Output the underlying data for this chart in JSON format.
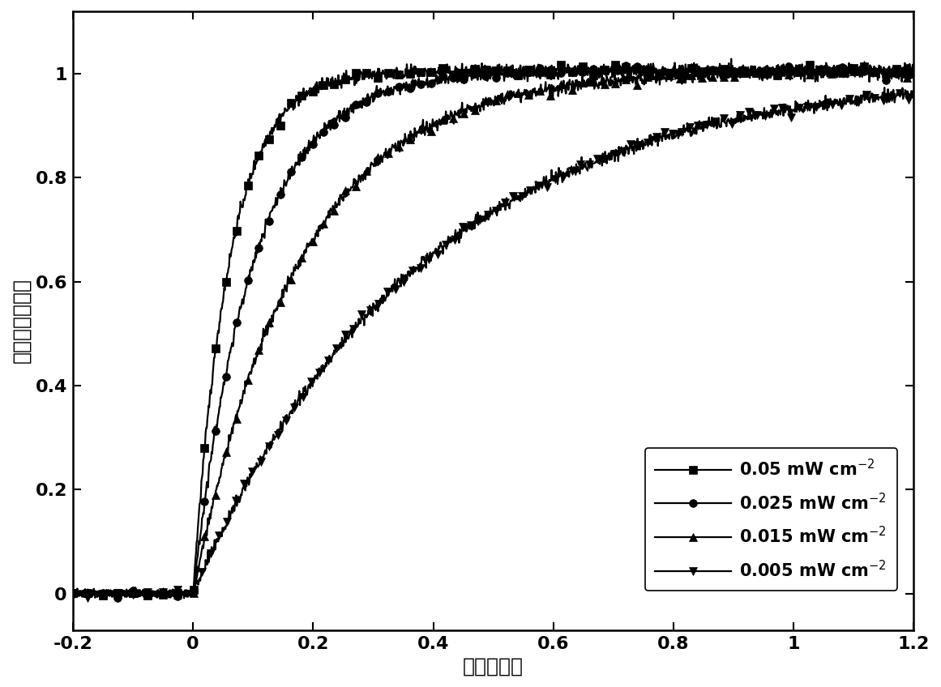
{
  "xlabel": "时间（秒）",
  "ylabel": "电流（归一化）",
  "xlim": [
    -0.2,
    1.2
  ],
  "ylim": [
    -0.07,
    1.12
  ],
  "xticks": [
    -0.2,
    0.0,
    0.2,
    0.4,
    0.6,
    0.8,
    1.0,
    1.2
  ],
  "yticks": [
    0.0,
    0.2,
    0.4,
    0.6,
    0.8,
    1.0
  ],
  "series": [
    {
      "label": "0.05 mW cm$^{-2}$",
      "tau": 0.06,
      "saturation": 1.005,
      "marker": "s",
      "markevery_post": 18,
      "noise_pre": 0.003,
      "noise_post": 0.006
    },
    {
      "label": "0.025 mW cm$^{-2}$",
      "tau": 0.1,
      "saturation": 1.005,
      "marker": "o",
      "markevery_post": 18,
      "noise_pre": 0.003,
      "noise_post": 0.006
    },
    {
      "label": "0.015 mW cm$^{-2}$",
      "tau": 0.175,
      "saturation": 1.005,
      "marker": "^",
      "markevery_post": 18,
      "noise_pre": 0.003,
      "noise_post": 0.006
    },
    {
      "label": "0.005 mW cm$^{-2}$",
      "tau": 0.38,
      "saturation": 1.005,
      "marker": "v",
      "markevery_post": 14,
      "noise_pre": 0.003,
      "noise_post": 0.006
    }
  ],
  "color": "#000000",
  "linewidth": 1.6,
  "markersize": 7,
  "background_color": "#ffffff",
  "xlabel_fontsize": 18,
  "ylabel_fontsize": 18,
  "tick_fontsize": 16,
  "legend_fontsize": 15
}
